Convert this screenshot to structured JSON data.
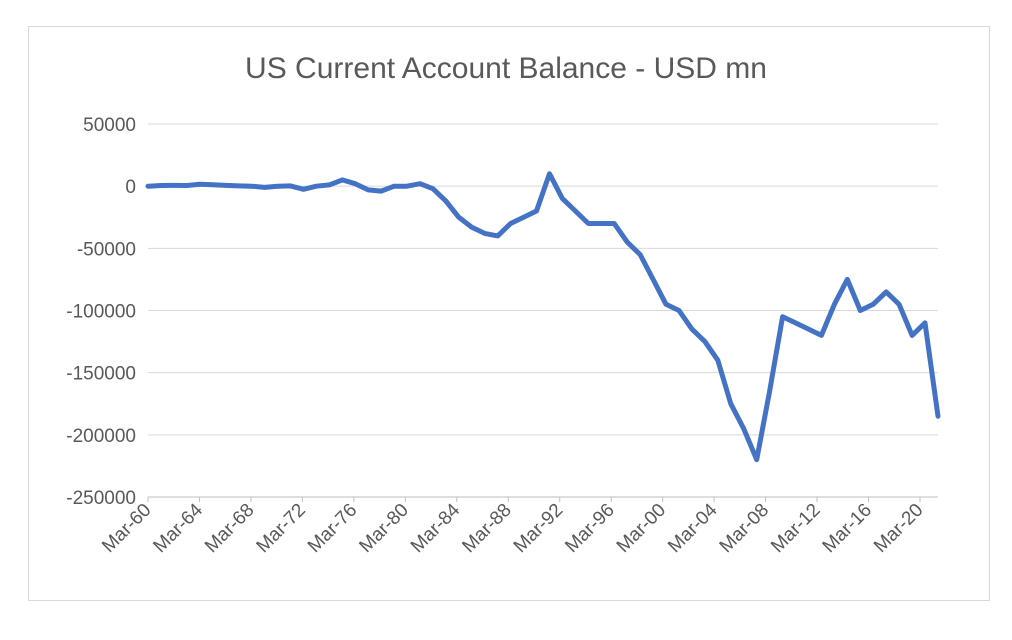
{
  "chart_data": {
    "type": "line",
    "title": "US Current Account Balance - USD mn",
    "xlabel": "",
    "ylabel": "",
    "ylim": [
      -250000,
      50000
    ],
    "yticks": [
      50000,
      0,
      -50000,
      -100000,
      -150000,
      -200000,
      -250000
    ],
    "ytick_labels": [
      "50000",
      "0",
      "-50000",
      "-100000",
      "-150000",
      "-200000",
      "-250000"
    ],
    "xtick_labels": [
      "Mar-60",
      "Mar-64",
      "Mar-68",
      "Mar-72",
      "Mar-76",
      "Mar-80",
      "Mar-84",
      "Mar-88",
      "Mar-92",
      "Mar-96",
      "Mar-00",
      "Mar-04",
      "Mar-08",
      "Mar-12",
      "Mar-16",
      "Mar-20"
    ],
    "grid": true,
    "legend": "none",
    "color": "#4472c4",
    "series": [
      {
        "x": [
          "Mar-60",
          "Mar-61",
          "Mar-62",
          "Mar-63",
          "Mar-64",
          "Mar-65",
          "Mar-66",
          "Mar-67",
          "Mar-68",
          "Mar-69",
          "Mar-70",
          "Mar-71",
          "Mar-72",
          "Mar-73",
          "Mar-74",
          "Mar-75",
          "Mar-76",
          "Mar-77",
          "Mar-78",
          "Mar-79",
          "Mar-80",
          "Mar-81",
          "Mar-82",
          "Mar-83",
          "Mar-84",
          "Mar-85",
          "Mar-86",
          "Mar-87",
          "Mar-88",
          "Mar-89",
          "Mar-90",
          "Mar-91",
          "Mar-92",
          "Mar-93",
          "Mar-94",
          "Mar-95",
          "Mar-96",
          "Mar-97",
          "Mar-98",
          "Mar-99",
          "Mar-00",
          "Mar-01",
          "Mar-02",
          "Mar-03",
          "Mar-04",
          "Mar-05",
          "Mar-06",
          "Mar-07",
          "Mar-08",
          "Mar-09",
          "Mar-10",
          "Mar-11",
          "Mar-12",
          "Mar-13",
          "Mar-14",
          "Mar-15",
          "Mar-16",
          "Mar-17",
          "Mar-18",
          "Mar-19",
          "Mar-20",
          "Mar-21"
        ],
        "values": [
          0,
          500,
          600,
          500,
          1500,
          1200,
          600,
          200,
          0,
          -1000,
          0,
          200,
          -2500,
          0,
          1000,
          5000,
          2000,
          -3000,
          -4000,
          0,
          0,
          2000,
          -2000,
          -12000,
          -25000,
          -33000,
          -38000,
          -40000,
          -30000,
          -25000,
          -20000,
          10000,
          -10000,
          -20000,
          -30000,
          -30000,
          -30000,
          -45000,
          -55000,
          -75000,
          -95000,
          -100000,
          -115000,
          -125000,
          -140000,
          -175000,
          -195000,
          -220000,
          -165000,
          -105000,
          -110000,
          -115000,
          -120000,
          -95000,
          -75000,
          -100000,
          -95000,
          -85000,
          -95000,
          -120000,
          -110000,
          -185000
        ]
      }
    ]
  }
}
